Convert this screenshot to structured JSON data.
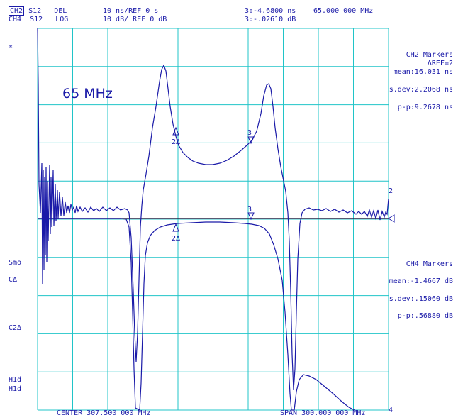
{
  "header": {
    "row1": {
      "channel": "CH2",
      "param": "S12",
      "format": "DEL",
      "scale": "10 ns/REF 0 s",
      "marker_readout": "3:-4.6800 ns",
      "marker_freq": "65.000 000 MHz"
    },
    "row2": {
      "channel": "CH4",
      "param": "S12",
      "format": "LOG",
      "scale": "10 dB/ REF 0 dB",
      "marker_readout": "3:-.02610 dB"
    }
  },
  "left_annotations": {
    "asterisk": "*",
    "smo": "Smo",
    "c_delta": "CΔ",
    "c2_delta": "C2Δ",
    "hld1": "H1d",
    "hld2": "H1d"
  },
  "plot_label": "65 MHz",
  "ch2_markers": {
    "title": "CH2 Markers",
    "ref": "ΔREF=2",
    "mean": "mean:16.031 ns",
    "sdev": "s.dev:2.2068 ns",
    "pp": "p-p:9.2678 ns"
  },
  "ch4_markers": {
    "title": "CH4 Markers",
    "mean": "mean:-1.4667 dB",
    "sdev": "s.dev:.15060 dB",
    "pp": "p-p:.56880 dB"
  },
  "footer": {
    "center": "CENTER 307.500 000 MHz",
    "span": "SPAN 300.000 000 MHz"
  },
  "markers": {
    "m2_top": "2Δ",
    "m3_top": "3",
    "m2_bottom": "2Δ",
    "m3_bottom": "3",
    "ref_right_top": "2",
    "ref_right_bottom": "4"
  },
  "colors": {
    "grid": "#20c4c8",
    "trace": "#1a1aa8",
    "text": "#1a1aa8"
  },
  "chart_data": {
    "type": "line",
    "x_range_mhz": [
      157.5,
      457.5
    ],
    "grid": true,
    "series": [
      {
        "channel": "CH2",
        "format": "DEL",
        "unit": "ns"
      },
      {
        "channel": "CH4",
        "format": "LOG",
        "unit": "dB"
      }
    ]
  }
}
